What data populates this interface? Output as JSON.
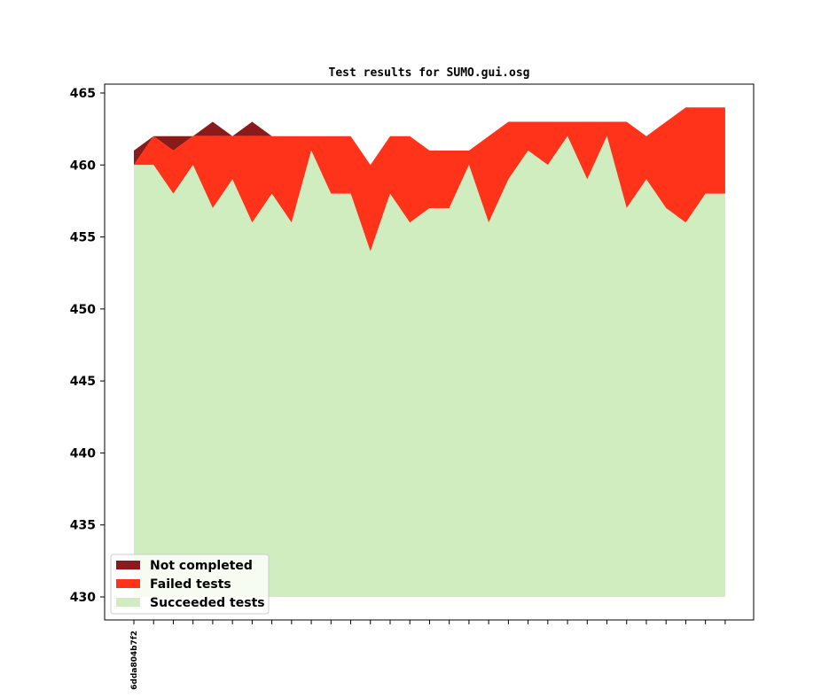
{
  "chart_data": {
    "type": "area",
    "title": "Test results for SUMO.gui.osg",
    "xlabel": "",
    "ylabel": "",
    "ylim": [
      430,
      465
    ],
    "yticks": [
      430,
      435,
      440,
      445,
      450,
      455,
      460,
      465
    ],
    "x_tick_labels": [
      "6dda804b7f2"
    ],
    "legend_position": "lower-left",
    "grid": false,
    "colors": {
      "not_completed": "#8b1a1a",
      "failed": "#ff331a",
      "succeeded": "#cfedbe"
    },
    "series": [
      {
        "name": "Succeeded tests",
        "values": [
          460,
          460,
          458,
          460,
          457,
          459,
          456,
          458,
          456,
          461,
          458,
          458,
          454,
          458,
          456,
          457,
          457,
          460,
          456,
          459,
          461,
          460,
          462,
          459,
          462,
          457,
          459,
          457,
          456,
          458,
          458
        ]
      },
      {
        "name": "Failed tests",
        "values": [
          0,
          2,
          3,
          2,
          5,
          3,
          6,
          4,
          6,
          1,
          4,
          4,
          6,
          4,
          6,
          4,
          4,
          1,
          6,
          4,
          2,
          3,
          1,
          4,
          1,
          6,
          3,
          6,
          8,
          6,
          6
        ]
      },
      {
        "name": "Not completed",
        "values": [
          1,
          0,
          1,
          0,
          1,
          0,
          1,
          0,
          0,
          0,
          0,
          0,
          0,
          0,
          0,
          0,
          0,
          0,
          0,
          0,
          0,
          0,
          0,
          0,
          0,
          0,
          0,
          0,
          0,
          0,
          0
        ]
      }
    ],
    "legend_order": [
      "Not completed",
      "Failed tests",
      "Succeeded tests"
    ]
  }
}
